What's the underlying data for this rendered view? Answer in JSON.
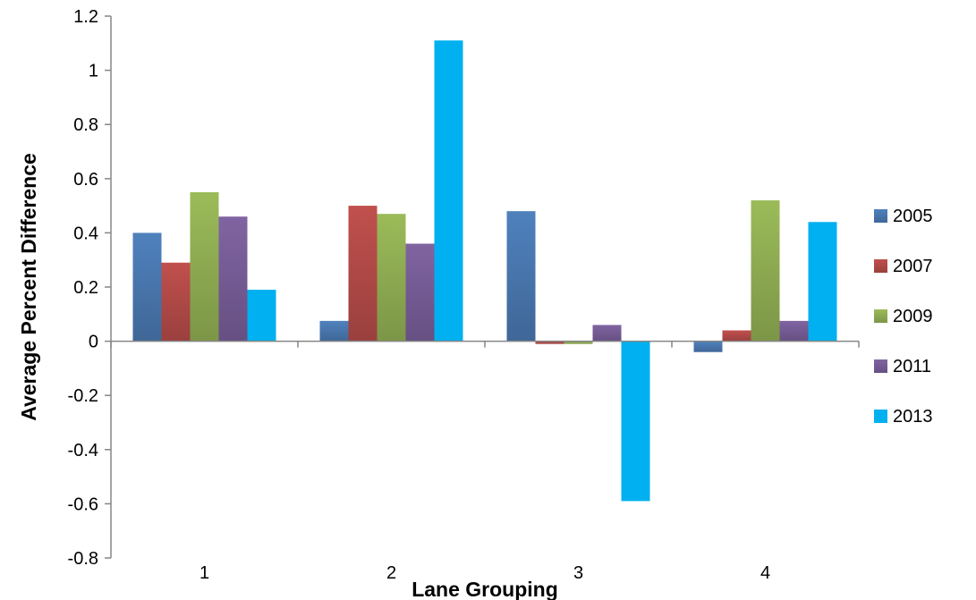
{
  "chart_data": {
    "type": "bar",
    "title": "",
    "xlabel": "Lane Grouping",
    "ylabel": "Average Percent Difference",
    "categories": [
      "1",
      "2",
      "3",
      "4"
    ],
    "ylim": [
      -0.8,
      1.2
    ],
    "yticks": [
      1.2,
      1,
      0.8,
      0.6,
      0.4,
      0.2,
      0,
      -0.2,
      -0.4,
      -0.6,
      -0.8
    ],
    "ytick_labels": [
      "1.2",
      "1",
      "0.8",
      "0.6",
      "0.4",
      "0.2",
      "0",
      "-0.2",
      "-0.4",
      "-0.6",
      "-0.8"
    ],
    "grid": false,
    "legend_position": "right",
    "series": [
      {
        "name": "2005",
        "color": "#4F81BD",
        "values": [
          0.4,
          0.075,
          0.48,
          -0.04
        ]
      },
      {
        "name": "2007",
        "color": "#C0504D",
        "values": [
          0.29,
          0.5,
          -0.01,
          0.04
        ]
      },
      {
        "name": "2009",
        "color": "#9BBB59",
        "values": [
          0.55,
          0.47,
          -0.01,
          0.52
        ]
      },
      {
        "name": "2011",
        "color": "#8064A2",
        "values": [
          0.46,
          0.36,
          0.06,
          0.075
        ]
      },
      {
        "name": "2013",
        "color": "#00B0F0",
        "values": [
          0.19,
          1.11,
          -0.59,
          0.44
        ]
      }
    ]
  }
}
